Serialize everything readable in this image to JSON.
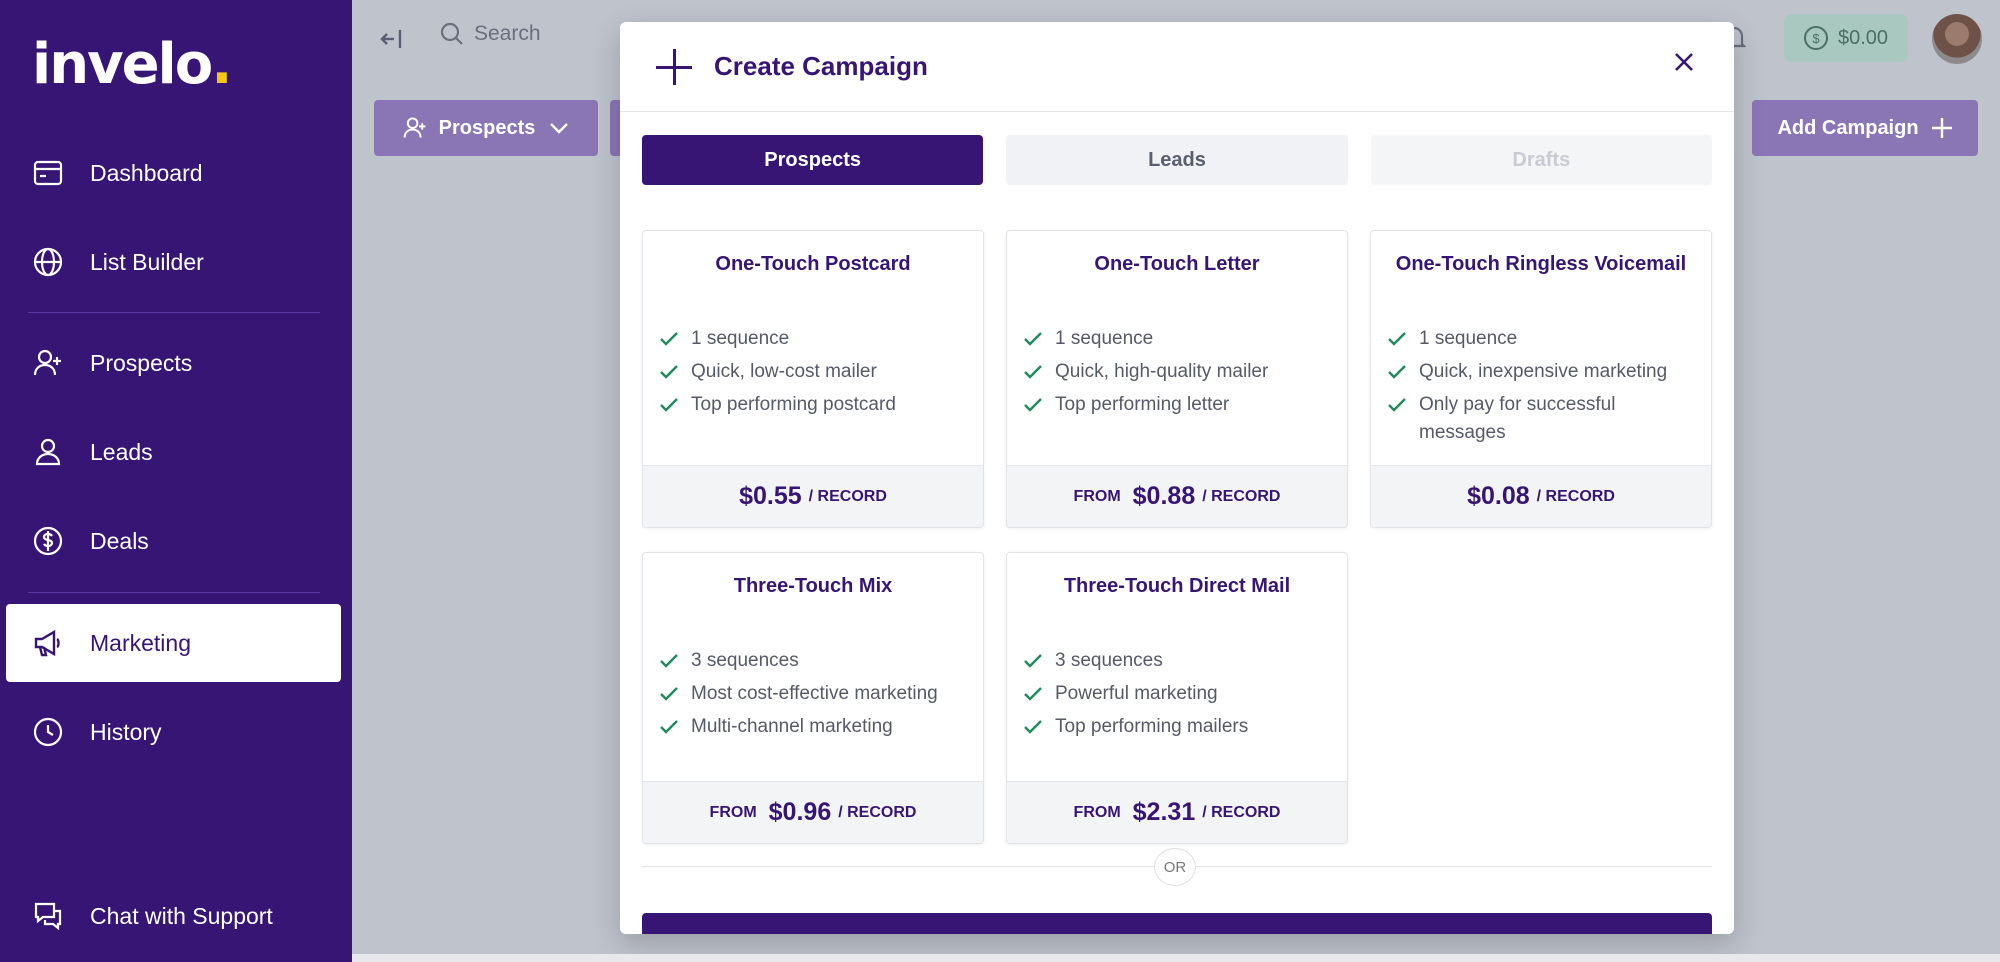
{
  "sidebar": {
    "logo": "invelo",
    "logo_dot": ".",
    "items": [
      {
        "label": "Dashboard",
        "icon": "card-icon"
      },
      {
        "label": "List Builder",
        "icon": "globe-icon"
      },
      {
        "label": "Prospects",
        "icon": "user-plus-icon"
      },
      {
        "label": "Leads",
        "icon": "users-icon"
      },
      {
        "label": "Deals",
        "icon": "dollar-circle-icon"
      },
      {
        "label": "Marketing",
        "icon": "megaphone-icon",
        "active": true
      },
      {
        "label": "History",
        "icon": "clock-icon"
      },
      {
        "label": "Chat with Support",
        "icon": "chat-icon"
      }
    ]
  },
  "topbar": {
    "search_placeholder": "Search",
    "balance": "$0.00"
  },
  "background_buttons": {
    "prospects": "Prospects",
    "add_campaign": "Add Campaign"
  },
  "modal": {
    "title": "Create Campaign",
    "tabs": [
      {
        "label": "Prospects",
        "state": "active"
      },
      {
        "label": "Leads",
        "state": "normal"
      },
      {
        "label": "Drafts",
        "state": "disabled"
      }
    ],
    "cards": [
      {
        "title": "One-Touch Postcard",
        "features": [
          "1 sequence",
          "Quick, low-cost mailer",
          "Top performing postcard"
        ],
        "from": "",
        "price": "$0.55",
        "unit": "/ RECORD"
      },
      {
        "title": "One-Touch Letter",
        "features": [
          "1 sequence",
          "Quick, high-quality mailer",
          "Top performing letter"
        ],
        "from": "FROM",
        "price": "$0.88",
        "unit": "/ RECORD"
      },
      {
        "title": "One-Touch Ringless Voicemail",
        "features": [
          "1 sequence",
          "Quick, inexpensive marketing",
          "Only pay for successful messages"
        ],
        "from": "",
        "price": "$0.08",
        "unit": "/ RECORD"
      },
      {
        "title": "Three-Touch Mix",
        "features": [
          "3 sequences",
          "Most cost-effective marketing",
          "Multi-channel marketing"
        ],
        "from": "FROM",
        "price": "$0.96",
        "unit": "/ RECORD"
      },
      {
        "title": "Three-Touch Direct Mail",
        "features": [
          "3 sequences",
          "Powerful marketing",
          "Top performing mailers"
        ],
        "from": "FROM",
        "price": "$2.31",
        "unit": "/ RECORD"
      }
    ],
    "or_label": "OR"
  },
  "colors": {
    "brand": "#371575",
    "accent_yellow": "#f5c518",
    "check_green": "#1f8a5b"
  }
}
